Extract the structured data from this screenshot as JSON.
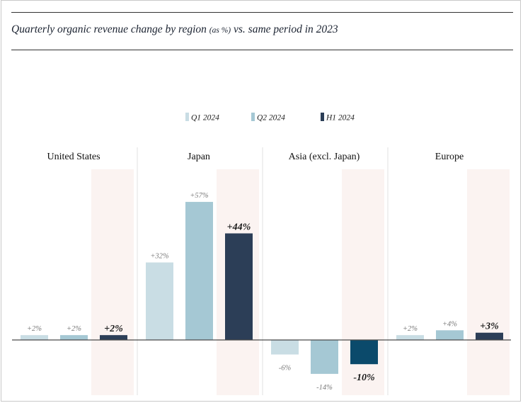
{
  "title": {
    "main": "Quarterly organic revenue change by region",
    "unit": "(as %)",
    "suffix": "vs. same period in 2023"
  },
  "chart_data": {
    "type": "bar",
    "title": "Quarterly organic revenue change by region (as %) vs. same period in 2023",
    "categories": [
      "United States",
      "Japan",
      "Asia (excl. Japan)",
      "Europe"
    ],
    "series": [
      {
        "name": "Q1 2024",
        "color": "#c9dde4",
        "values": [
          2,
          32,
          -6,
          2
        ],
        "labels": [
          "+2%",
          "+32%",
          "-6%",
          "+2%"
        ]
      },
      {
        "name": "Q2 2024",
        "color": "#a5c8d4",
        "values": [
          2,
          57,
          -14,
          4
        ],
        "labels": [
          "+2%",
          "+57%",
          "-14%",
          "+4%"
        ]
      },
      {
        "name": "H1 2024",
        "color": "#2c3e57",
        "colors": [
          "#2c3e57",
          "#2c3e57",
          "#0b4a6b",
          "#2c3e57"
        ],
        "values": [
          2,
          44,
          -10,
          3
        ],
        "labels": [
          "+2%",
          "+44%",
          "-10%",
          "+3%"
        ]
      }
    ],
    "highlight_color": "#fbf3f1",
    "legend_position": "top-center",
    "grid": false
  }
}
